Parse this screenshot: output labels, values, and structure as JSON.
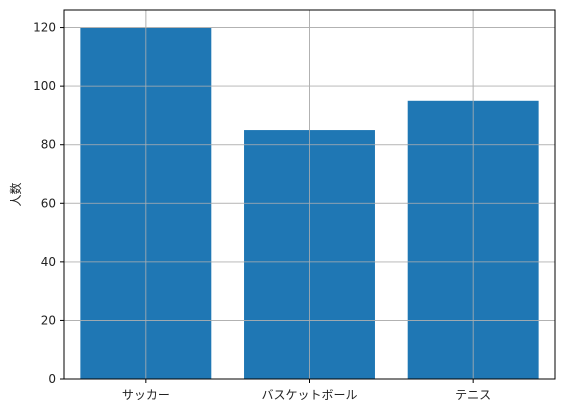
{
  "chart_data": {
    "type": "bar",
    "categories": [
      "サッカー",
      "バスケットボール",
      "テニス"
    ],
    "values": [
      120,
      85,
      95
    ],
    "title": "",
    "xlabel": "",
    "ylabel": "人数",
    "ylim": [
      0,
      126
    ],
    "yticks": [
      0,
      20,
      40,
      60,
      80,
      100,
      120
    ],
    "grid": true,
    "colors": {
      "bar": "#1f77b4",
      "grid": "#b0b0b0",
      "axis": "#000000"
    }
  }
}
